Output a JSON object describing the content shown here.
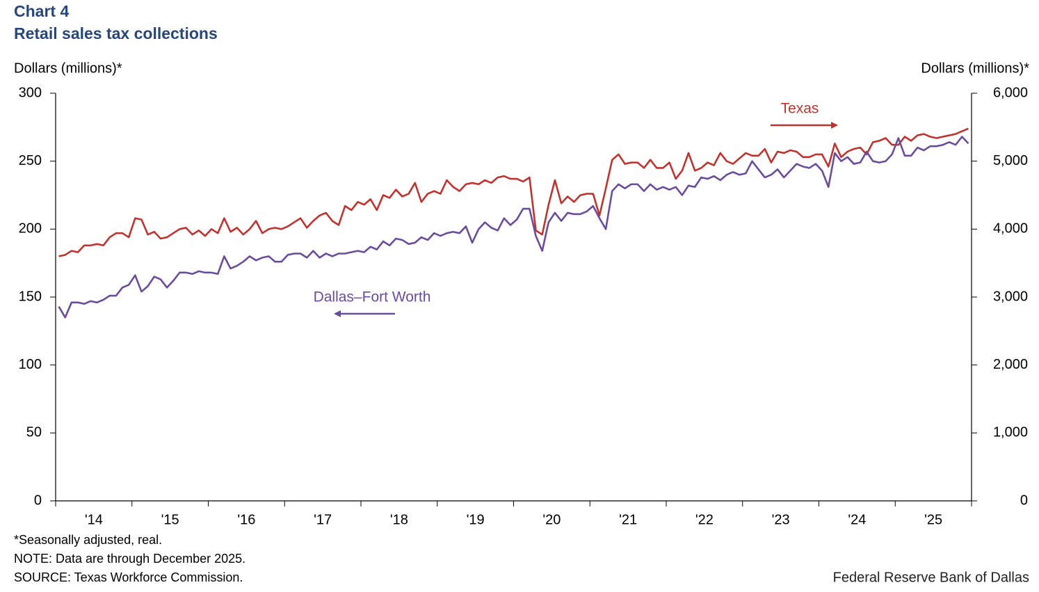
{
  "chart_data": {
    "type": "line",
    "title": "Chart 4",
    "subtitle": "Retail sales tax collections",
    "y_label": "Dollars (millions)*",
    "y2_label": "Dollars (millions)*",
    "footnotes": [
      "*Seasonally adjusted, real.",
      "NOTE: Data are through December 2025.",
      "SOURCE: Texas Workforce Commission."
    ],
    "credit": "Federal Reserve Bank of Dallas",
    "categories": [
      null,
      null,
      null,
      null,
      null,
      null,
      "'14",
      null,
      null,
      null,
      null,
      null,
      null,
      null,
      null,
      null,
      null,
      null,
      "'15",
      null,
      null,
      null,
      null,
      null,
      null,
      null,
      null,
      null,
      null,
      null,
      "'16",
      null,
      null,
      null,
      null,
      null,
      null,
      null,
      null,
      null,
      null,
      null,
      "'17",
      null,
      null,
      null,
      null,
      null,
      null,
      null,
      null,
      null,
      null,
      null,
      "'18",
      null,
      null,
      null,
      null,
      null,
      null,
      null,
      null,
      null,
      null,
      null,
      "'19",
      null,
      null,
      null,
      null,
      null,
      null,
      null,
      null,
      null,
      null,
      null,
      "'20",
      null,
      null,
      null,
      null,
      null,
      null,
      null,
      null,
      null,
      null,
      null,
      "'21",
      null,
      null,
      null,
      null,
      null,
      null,
      null,
      null,
      null,
      null,
      null,
      "'22",
      null,
      null,
      null,
      null,
      null,
      null,
      null,
      null,
      null,
      null,
      null,
      "'23",
      null,
      null,
      null,
      null,
      null,
      null,
      null,
      null,
      null,
      null,
      null,
      "'24",
      null,
      null,
      null,
      null,
      null,
      null,
      null,
      null,
      null,
      null,
      null,
      "'25",
      null,
      null,
      null,
      null,
      null
    ],
    "ylim": [
      0,
      300
    ],
    "yticks": [
      0,
      50,
      100,
      150,
      200,
      250,
      300
    ],
    "y2lim": [
      0,
      6000
    ],
    "y2ticks": [
      0,
      {
        "value": 1000,
        "label": "1,000"
      },
      {
        "value": 2000,
        "label": "2,000"
      },
      {
        "value": 3000,
        "label": "3,000"
      },
      {
        "value": 4000,
        "label": "4,000"
      },
      {
        "value": 5000,
        "label": "5,000"
      },
      {
        "value": 6000,
        "label": "6,000"
      }
    ],
    "series": [
      {
        "name": "Texas",
        "color": "#c0322e",
        "axis": "y2",
        "values": [
          3600,
          3620,
          3680,
          3660,
          3760,
          3760,
          3780,
          3760,
          3880,
          3940,
          3940,
          3880,
          4160,
          4140,
          3920,
          3960,
          3860,
          3880,
          3940,
          4000,
          4020,
          3920,
          3980,
          3900,
          4000,
          3940,
          4160,
          3960,
          4020,
          3920,
          4000,
          4120,
          3940,
          4000,
          4020,
          4000,
          4040,
          4100,
          4160,
          4020,
          4120,
          4200,
          4240,
          4120,
          4060,
          4340,
          4280,
          4400,
          4360,
          4440,
          4280,
          4500,
          4460,
          4580,
          4480,
          4520,
          4680,
          4400,
          4520,
          4560,
          4520,
          4720,
          4620,
          4560,
          4660,
          4680,
          4660,
          4720,
          4680,
          4760,
          4780,
          4740,
          4740,
          4700,
          4760,
          3980,
          3920,
          4360,
          4720,
          4380,
          4480,
          4400,
          4500,
          4520,
          4520,
          4200,
          4600,
          5020,
          5100,
          4960,
          4980,
          4980,
          4900,
          5020,
          4900,
          4900,
          4980,
          4740,
          4860,
          5120,
          4860,
          4900,
          4980,
          4940,
          5120,
          5000,
          4960,
          5040,
          5120,
          5080,
          5080,
          5180,
          4980,
          5140,
          5120,
          5160,
          5140,
          5060,
          5060,
          5100,
          5100,
          4920,
          5260,
          5060,
          5140,
          5180,
          5200,
          5100,
          5280,
          5300,
          5340,
          5240,
          5240,
          5360,
          5300,
          5380,
          5400,
          5360,
          5340,
          5360,
          5380,
          5400,
          5440,
          5480
        ]
      },
      {
        "name": "Dallas–Fort Worth",
        "color": "#6b4c9a",
        "values": [
          143,
          135,
          146,
          146,
          145,
          147,
          146,
          148,
          151,
          151,
          157,
          159,
          166,
          154,
          158,
          165,
          163,
          157,
          162,
          168,
          168,
          167,
          169,
          168,
          168,
          167,
          180,
          171,
          173,
          176,
          180,
          177,
          179,
          180,
          176,
          176,
          181,
          182,
          182,
          179,
          184,
          179,
          182,
          180,
          182,
          182,
          183,
          184,
          183,
          187,
          185,
          191,
          188,
          193,
          192,
          189,
          190,
          194,
          192,
          197,
          195,
          197,
          198,
          197,
          202,
          190,
          200,
          205,
          201,
          199,
          208,
          203,
          207,
          215,
          215,
          195,
          184,
          205,
          212,
          206,
          212,
          211,
          211,
          213,
          217,
          208,
          200,
          228,
          233,
          230,
          233,
          233,
          228,
          233,
          229,
          231,
          229,
          231,
          225,
          232,
          231,
          238,
          237,
          239,
          236,
          240,
          242,
          240,
          241,
          250,
          244,
          238,
          240,
          244,
          238,
          243,
          248,
          246,
          245,
          248,
          243,
          231,
          256,
          250,
          253,
          248,
          249,
          257,
          250,
          249,
          250,
          255,
          267,
          254,
          254,
          260,
          258,
          261,
          261,
          262,
          264,
          262,
          268,
          263
        ]
      }
    ]
  }
}
